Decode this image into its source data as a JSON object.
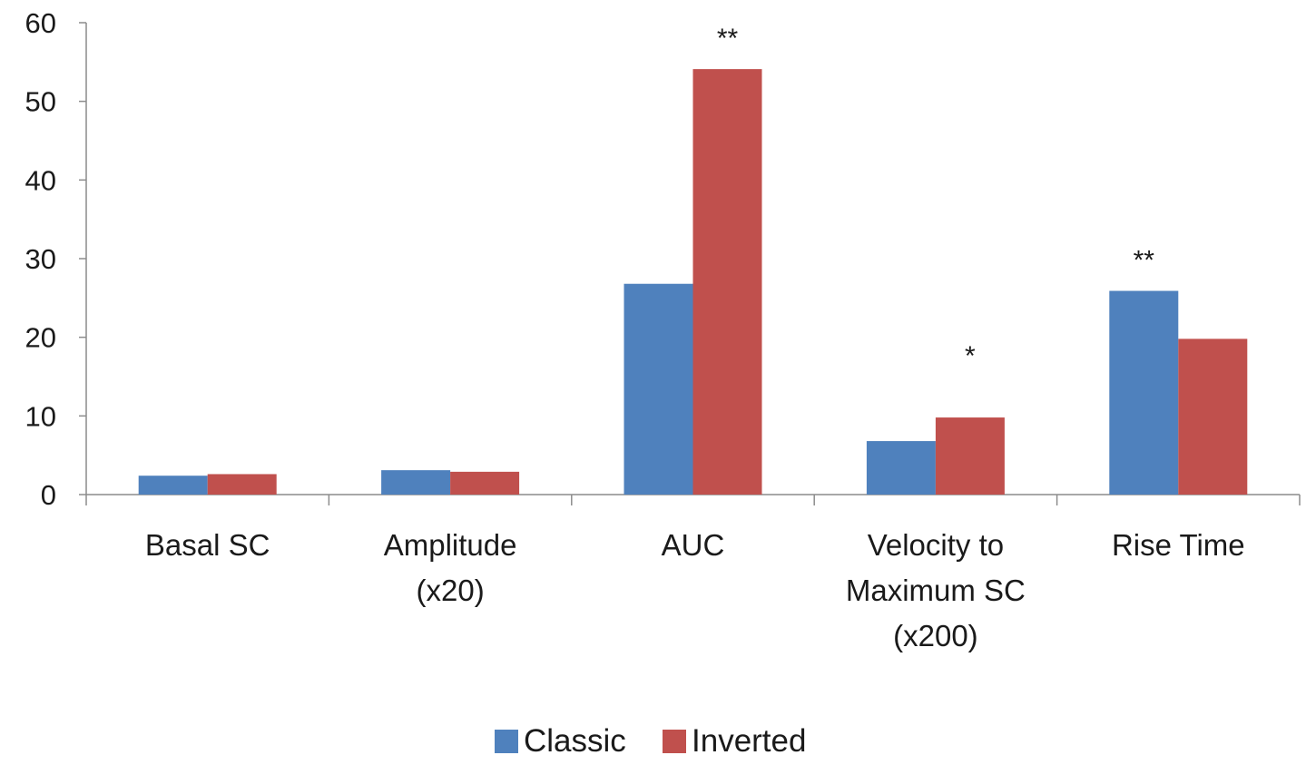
{
  "chart_data": {
    "type": "bar",
    "categories": [
      [
        "Basal SC"
      ],
      [
        "Amplitude",
        "(x20)"
      ],
      [
        "AUC"
      ],
      [
        "Velocity to",
        "Maximum SC",
        "(x200)"
      ],
      [
        "Rise Time"
      ]
    ],
    "series": [
      {
        "name": "Classic",
        "color": "#4F81BD",
        "values": [
          2.4,
          3.1,
          26.8,
          6.8,
          25.9
        ]
      },
      {
        "name": "Inverted",
        "color": "#C0504D",
        "values": [
          2.6,
          2.9,
          54.1,
          9.8,
          19.8
        ]
      }
    ],
    "annotations": [
      {
        "category_index": 2,
        "series_index": 1,
        "text": "**"
      },
      {
        "category_index": 3,
        "series_index": 1,
        "text": "*"
      },
      {
        "category_index": 4,
        "series_index": 0,
        "text": "**"
      }
    ],
    "ylim": [
      0,
      60
    ],
    "yticks": [
      0,
      10,
      20,
      30,
      40,
      50,
      60
    ],
    "grid": false,
    "legend_position": "bottom-center",
    "title": "",
    "xlabel": "",
    "ylabel": ""
  }
}
